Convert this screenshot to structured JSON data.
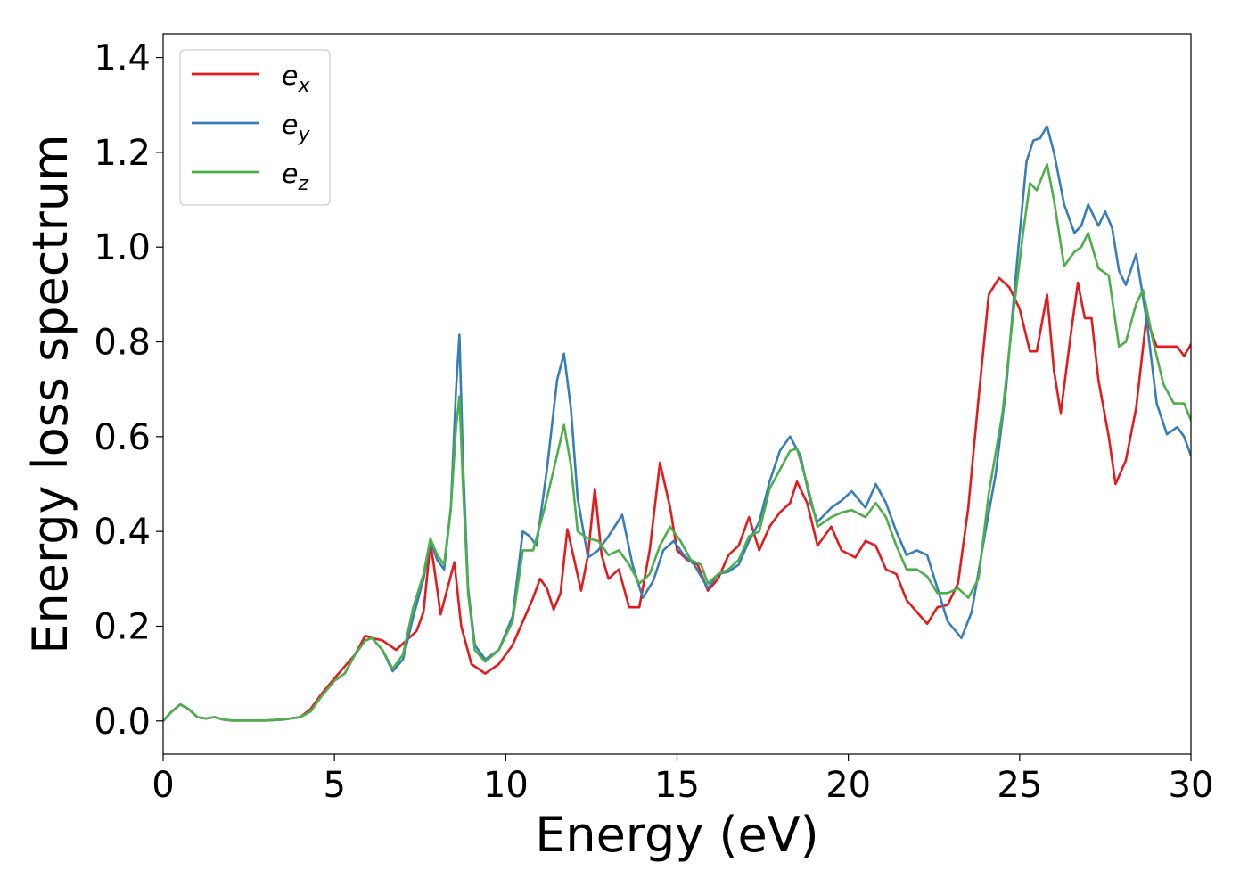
{
  "chart_data": {
    "type": "line",
    "title": "",
    "xlabel": "Energy (eV)",
    "ylabel": "Energy loss spectrum",
    "xlim": [
      0,
      30
    ],
    "ylim": [
      -0.07,
      1.45
    ],
    "xticks": [
      0,
      5,
      10,
      15,
      20,
      25,
      30
    ],
    "yticks": [
      0.0,
      0.2,
      0.4,
      0.6,
      0.8,
      1.0,
      1.2,
      1.4
    ],
    "ytick_decimals": 1,
    "grid": false,
    "legend_position": "top-left",
    "series": [
      {
        "name": "e",
        "subscript": "x",
        "color": "#e41a1c",
        "points": [
          [
            0,
            0.0
          ],
          [
            0.25,
            0.02
          ],
          [
            0.5,
            0.035
          ],
          [
            0.75,
            0.025
          ],
          [
            1.0,
            0.008
          ],
          [
            1.25,
            0.005
          ],
          [
            1.5,
            0.008
          ],
          [
            1.75,
            0.003
          ],
          [
            2.0,
            0.001
          ],
          [
            3.0,
            0.001
          ],
          [
            3.5,
            0.003
          ],
          [
            4.0,
            0.008
          ],
          [
            4.3,
            0.025
          ],
          [
            4.6,
            0.055
          ],
          [
            5.0,
            0.09
          ],
          [
            5.3,
            0.115
          ],
          [
            5.6,
            0.14
          ],
          [
            5.9,
            0.18
          ],
          [
            6.1,
            0.175
          ],
          [
            6.4,
            0.17
          ],
          [
            6.6,
            0.16
          ],
          [
            6.8,
            0.15
          ],
          [
            7.1,
            0.17
          ],
          [
            7.4,
            0.19
          ],
          [
            7.6,
            0.23
          ],
          [
            7.8,
            0.375
          ],
          [
            7.9,
            0.33
          ],
          [
            8.1,
            0.225
          ],
          [
            8.3,
            0.28
          ],
          [
            8.5,
            0.335
          ],
          [
            8.7,
            0.2
          ],
          [
            9.0,
            0.12
          ],
          [
            9.4,
            0.1
          ],
          [
            9.8,
            0.12
          ],
          [
            10.2,
            0.16
          ],
          [
            10.5,
            0.21
          ],
          [
            10.8,
            0.26
          ],
          [
            11.0,
            0.3
          ],
          [
            11.2,
            0.28
          ],
          [
            11.4,
            0.235
          ],
          [
            11.6,
            0.27
          ],
          [
            11.8,
            0.405
          ],
          [
            12.0,
            0.34
          ],
          [
            12.2,
            0.275
          ],
          [
            12.4,
            0.35
          ],
          [
            12.6,
            0.49
          ],
          [
            12.8,
            0.35
          ],
          [
            13.0,
            0.3
          ],
          [
            13.3,
            0.32
          ],
          [
            13.6,
            0.24
          ],
          [
            13.9,
            0.24
          ],
          [
            14.2,
            0.36
          ],
          [
            14.5,
            0.545
          ],
          [
            14.8,
            0.45
          ],
          [
            15.0,
            0.36
          ],
          [
            15.3,
            0.34
          ],
          [
            15.6,
            0.33
          ],
          [
            15.9,
            0.275
          ],
          [
            16.2,
            0.3
          ],
          [
            16.5,
            0.35
          ],
          [
            16.8,
            0.37
          ],
          [
            17.1,
            0.43
          ],
          [
            17.4,
            0.36
          ],
          [
            17.7,
            0.41
          ],
          [
            18.0,
            0.44
          ],
          [
            18.3,
            0.46
          ],
          [
            18.5,
            0.505
          ],
          [
            18.8,
            0.46
          ],
          [
            19.1,
            0.37
          ],
          [
            19.5,
            0.41
          ],
          [
            19.8,
            0.36
          ],
          [
            20.2,
            0.345
          ],
          [
            20.5,
            0.38
          ],
          [
            20.8,
            0.37
          ],
          [
            21.1,
            0.32
          ],
          [
            21.4,
            0.31
          ],
          [
            21.7,
            0.255
          ],
          [
            22.0,
            0.23
          ],
          [
            22.3,
            0.205
          ],
          [
            22.6,
            0.24
          ],
          [
            22.9,
            0.245
          ],
          [
            23.2,
            0.29
          ],
          [
            23.5,
            0.45
          ],
          [
            23.8,
            0.68
          ],
          [
            24.1,
            0.9
          ],
          [
            24.4,
            0.935
          ],
          [
            24.7,
            0.915
          ],
          [
            25.0,
            0.87
          ],
          [
            25.3,
            0.78
          ],
          [
            25.5,
            0.78
          ],
          [
            25.8,
            0.9
          ],
          [
            26.0,
            0.74
          ],
          [
            26.2,
            0.65
          ],
          [
            26.5,
            0.82
          ],
          [
            26.7,
            0.925
          ],
          [
            26.9,
            0.85
          ],
          [
            27.1,
            0.85
          ],
          [
            27.3,
            0.72
          ],
          [
            27.6,
            0.6
          ],
          [
            27.8,
            0.5
          ],
          [
            28.1,
            0.55
          ],
          [
            28.4,
            0.66
          ],
          [
            28.7,
            0.85
          ],
          [
            29.0,
            0.79
          ],
          [
            29.3,
            0.79
          ],
          [
            29.6,
            0.79
          ],
          [
            29.8,
            0.77
          ],
          [
            30.0,
            0.795
          ]
        ]
      },
      {
        "name": "e",
        "subscript": "y",
        "color": "#377eb8",
        "points": [
          [
            0,
            0.0
          ],
          [
            0.25,
            0.02
          ],
          [
            0.5,
            0.035
          ],
          [
            0.75,
            0.025
          ],
          [
            1.0,
            0.008
          ],
          [
            1.25,
            0.005
          ],
          [
            1.5,
            0.008
          ],
          [
            1.75,
            0.003
          ],
          [
            2.0,
            0.001
          ],
          [
            3.0,
            0.001
          ],
          [
            3.5,
            0.003
          ],
          [
            4.0,
            0.008
          ],
          [
            4.3,
            0.02
          ],
          [
            4.6,
            0.05
          ],
          [
            5.0,
            0.085
          ],
          [
            5.3,
            0.1
          ],
          [
            5.6,
            0.14
          ],
          [
            5.9,
            0.17
          ],
          [
            6.1,
            0.175
          ],
          [
            6.4,
            0.15
          ],
          [
            6.7,
            0.105
          ],
          [
            7.0,
            0.13
          ],
          [
            7.3,
            0.22
          ],
          [
            7.6,
            0.3
          ],
          [
            7.8,
            0.38
          ],
          [
            8.0,
            0.34
          ],
          [
            8.2,
            0.32
          ],
          [
            8.4,
            0.45
          ],
          [
            8.55,
            0.7
          ],
          [
            8.65,
            0.815
          ],
          [
            8.75,
            0.55
          ],
          [
            8.9,
            0.28
          ],
          [
            9.1,
            0.16
          ],
          [
            9.4,
            0.13
          ],
          [
            9.8,
            0.15
          ],
          [
            10.2,
            0.22
          ],
          [
            10.5,
            0.4
          ],
          [
            10.7,
            0.39
          ],
          [
            10.9,
            0.37
          ],
          [
            11.2,
            0.53
          ],
          [
            11.5,
            0.72
          ],
          [
            11.7,
            0.775
          ],
          [
            11.9,
            0.66
          ],
          [
            12.1,
            0.47
          ],
          [
            12.4,
            0.345
          ],
          [
            12.7,
            0.36
          ],
          [
            13.0,
            0.39
          ],
          [
            13.4,
            0.435
          ],
          [
            13.7,
            0.33
          ],
          [
            14.0,
            0.26
          ],
          [
            14.3,
            0.295
          ],
          [
            14.6,
            0.36
          ],
          [
            14.9,
            0.38
          ],
          [
            15.2,
            0.35
          ],
          [
            15.5,
            0.33
          ],
          [
            15.9,
            0.28
          ],
          [
            16.2,
            0.31
          ],
          [
            16.5,
            0.315
          ],
          [
            16.8,
            0.33
          ],
          [
            17.1,
            0.38
          ],
          [
            17.4,
            0.42
          ],
          [
            17.7,
            0.505
          ],
          [
            18.0,
            0.57
          ],
          [
            18.3,
            0.6
          ],
          [
            18.6,
            0.56
          ],
          [
            18.9,
            0.46
          ],
          [
            19.1,
            0.42
          ],
          [
            19.5,
            0.45
          ],
          [
            19.8,
            0.465
          ],
          [
            20.1,
            0.485
          ],
          [
            20.5,
            0.45
          ],
          [
            20.8,
            0.5
          ],
          [
            21.1,
            0.46
          ],
          [
            21.4,
            0.4
          ],
          [
            21.7,
            0.35
          ],
          [
            22.0,
            0.36
          ],
          [
            22.3,
            0.35
          ],
          [
            22.6,
            0.28
          ],
          [
            22.9,
            0.21
          ],
          [
            23.3,
            0.175
          ],
          [
            23.6,
            0.23
          ],
          [
            24.0,
            0.4
          ],
          [
            24.3,
            0.52
          ],
          [
            24.6,
            0.7
          ],
          [
            24.9,
            0.95
          ],
          [
            25.2,
            1.18
          ],
          [
            25.4,
            1.225
          ],
          [
            25.6,
            1.23
          ],
          [
            25.8,
            1.255
          ],
          [
            26.0,
            1.2
          ],
          [
            26.3,
            1.09
          ],
          [
            26.6,
            1.03
          ],
          [
            26.8,
            1.045
          ],
          [
            27.0,
            1.09
          ],
          [
            27.3,
            1.045
          ],
          [
            27.5,
            1.075
          ],
          [
            27.7,
            1.04
          ],
          [
            27.9,
            0.95
          ],
          [
            28.1,
            0.92
          ],
          [
            28.4,
            0.985
          ],
          [
            28.7,
            0.85
          ],
          [
            29.0,
            0.67
          ],
          [
            29.3,
            0.605
          ],
          [
            29.6,
            0.62
          ],
          [
            29.8,
            0.6
          ],
          [
            30.0,
            0.56
          ]
        ]
      },
      {
        "name": "e",
        "subscript": "z",
        "color": "#4daf4a",
        "points": [
          [
            0,
            0.0
          ],
          [
            0.25,
            0.02
          ],
          [
            0.5,
            0.035
          ],
          [
            0.75,
            0.025
          ],
          [
            1.0,
            0.008
          ],
          [
            1.25,
            0.005
          ],
          [
            1.5,
            0.008
          ],
          [
            1.75,
            0.003
          ],
          [
            2.0,
            0.001
          ],
          [
            3.0,
            0.001
          ],
          [
            3.5,
            0.003
          ],
          [
            4.0,
            0.008
          ],
          [
            4.3,
            0.02
          ],
          [
            4.6,
            0.05
          ],
          [
            5.0,
            0.085
          ],
          [
            5.3,
            0.1
          ],
          [
            5.6,
            0.14
          ],
          [
            5.9,
            0.17
          ],
          [
            6.1,
            0.175
          ],
          [
            6.4,
            0.15
          ],
          [
            6.7,
            0.11
          ],
          [
            7.0,
            0.14
          ],
          [
            7.3,
            0.24
          ],
          [
            7.6,
            0.31
          ],
          [
            7.8,
            0.385
          ],
          [
            8.0,
            0.35
          ],
          [
            8.2,
            0.33
          ],
          [
            8.4,
            0.45
          ],
          [
            8.55,
            0.62
          ],
          [
            8.65,
            0.685
          ],
          [
            8.75,
            0.5
          ],
          [
            8.9,
            0.27
          ],
          [
            9.1,
            0.15
          ],
          [
            9.4,
            0.125
          ],
          [
            9.8,
            0.15
          ],
          [
            10.2,
            0.21
          ],
          [
            10.5,
            0.36
          ],
          [
            10.8,
            0.36
          ],
          [
            11.1,
            0.44
          ],
          [
            11.4,
            0.53
          ],
          [
            11.7,
            0.625
          ],
          [
            11.9,
            0.54
          ],
          [
            12.1,
            0.4
          ],
          [
            12.4,
            0.385
          ],
          [
            12.7,
            0.38
          ],
          [
            13.0,
            0.35
          ],
          [
            13.3,
            0.36
          ],
          [
            13.6,
            0.33
          ],
          [
            13.9,
            0.29
          ],
          [
            14.2,
            0.31
          ],
          [
            14.5,
            0.37
          ],
          [
            14.8,
            0.41
          ],
          [
            15.1,
            0.38
          ],
          [
            15.4,
            0.34
          ],
          [
            15.7,
            0.33
          ],
          [
            15.9,
            0.29
          ],
          [
            16.2,
            0.31
          ],
          [
            16.5,
            0.32
          ],
          [
            16.8,
            0.34
          ],
          [
            17.1,
            0.39
          ],
          [
            17.4,
            0.4
          ],
          [
            17.7,
            0.49
          ],
          [
            18.0,
            0.53
          ],
          [
            18.3,
            0.57
          ],
          [
            18.5,
            0.575
          ],
          [
            18.8,
            0.5
          ],
          [
            19.1,
            0.41
          ],
          [
            19.5,
            0.43
          ],
          [
            19.8,
            0.44
          ],
          [
            20.1,
            0.445
          ],
          [
            20.5,
            0.43
          ],
          [
            20.8,
            0.46
          ],
          [
            21.1,
            0.43
          ],
          [
            21.4,
            0.37
          ],
          [
            21.7,
            0.32
          ],
          [
            22.0,
            0.32
          ],
          [
            22.3,
            0.305
          ],
          [
            22.6,
            0.27
          ],
          [
            22.9,
            0.27
          ],
          [
            23.2,
            0.28
          ],
          [
            23.5,
            0.26
          ],
          [
            23.8,
            0.3
          ],
          [
            24.1,
            0.48
          ],
          [
            24.5,
            0.65
          ],
          [
            24.8,
            0.85
          ],
          [
            25.1,
            1.03
          ],
          [
            25.3,
            1.135
          ],
          [
            25.5,
            1.12
          ],
          [
            25.8,
            1.175
          ],
          [
            26.0,
            1.1
          ],
          [
            26.3,
            0.96
          ],
          [
            26.6,
            0.99
          ],
          [
            26.8,
            1.0
          ],
          [
            27.0,
            1.03
          ],
          [
            27.3,
            0.955
          ],
          [
            27.6,
            0.94
          ],
          [
            27.9,
            0.79
          ],
          [
            28.1,
            0.8
          ],
          [
            28.4,
            0.88
          ],
          [
            28.6,
            0.91
          ],
          [
            28.9,
            0.8
          ],
          [
            29.2,
            0.71
          ],
          [
            29.5,
            0.67
          ],
          [
            29.8,
            0.67
          ],
          [
            30.0,
            0.635
          ]
        ]
      }
    ]
  }
}
